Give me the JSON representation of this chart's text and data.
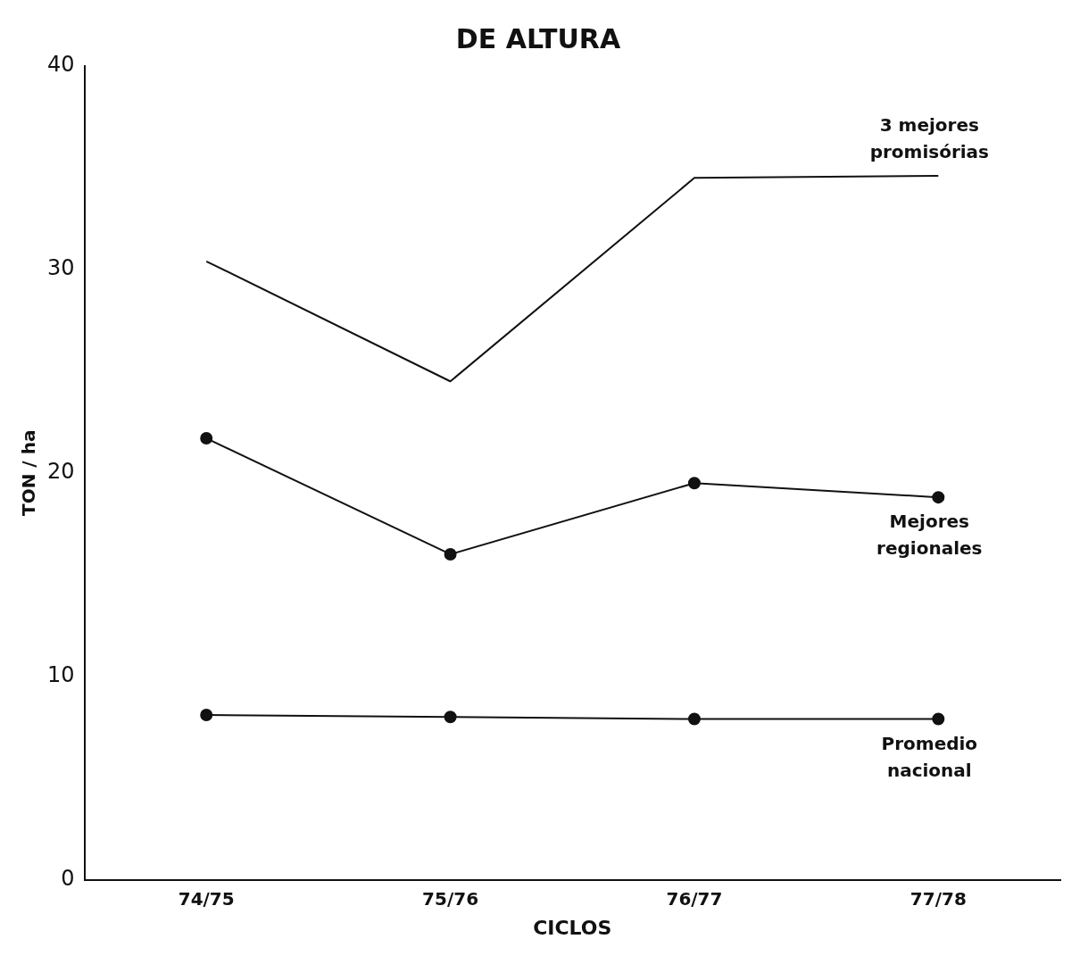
{
  "chart_data": {
    "type": "line",
    "title": "DE ALTURA",
    "xlabel": "CICLOS",
    "ylabel": "TON / ha",
    "categories": [
      "74/75",
      "75/76",
      "76/77",
      "77/78"
    ],
    "ylim": [
      0,
      40
    ],
    "yticks": [
      0,
      10,
      20,
      30,
      40
    ],
    "grid": false,
    "legend": false,
    "line_style": "solid",
    "series": [
      {
        "name": "3 mejores promisórias",
        "color": "#111111",
        "marker": "none",
        "values": [
          30.4,
          24.5,
          34.5,
          34.6
        ]
      },
      {
        "name": "Mejores regionales",
        "color": "#111111",
        "marker": "circle",
        "values": [
          21.7,
          16.0,
          19.5,
          18.8
        ]
      },
      {
        "name": "Promedio nacional",
        "color": "#111111",
        "marker": "circle",
        "values": [
          8.1,
          8.0,
          7.9,
          7.9
        ]
      }
    ]
  }
}
